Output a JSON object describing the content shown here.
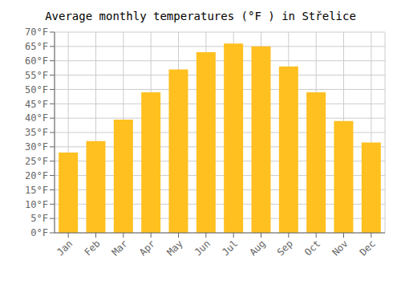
{
  "chart_data": {
    "type": "bar",
    "title": "Average monthly temperatures (°F ) in Střelice",
    "categories": [
      "Jan",
      "Feb",
      "Mar",
      "Apr",
      "May",
      "Jun",
      "Jul",
      "Aug",
      "Sep",
      "Oct",
      "Nov",
      "Dec"
    ],
    "values": [
      28,
      32,
      39.5,
      49,
      57,
      63,
      66,
      65,
      58,
      49,
      39,
      31.5
    ],
    "color": "#FFC020",
    "ylim": [
      0,
      70
    ],
    "yticks": [
      {
        "value": 0,
        "label": "0°F"
      },
      {
        "value": 5,
        "label": "5°F"
      },
      {
        "value": 10,
        "label": "10°F"
      },
      {
        "value": 15,
        "label": "15°F"
      },
      {
        "value": 20,
        "label": "20°F"
      },
      {
        "value": 25,
        "label": "25°F"
      },
      {
        "value": 30,
        "label": "30°F"
      },
      {
        "value": 35,
        "label": "35°F"
      },
      {
        "value": 40,
        "label": "40°F"
      },
      {
        "value": 45,
        "label": "45°F"
      },
      {
        "value": 50,
        "label": "50°F"
      },
      {
        "value": 55,
        "label": "55°F"
      },
      {
        "value": 60,
        "label": "60°F"
      },
      {
        "value": 65,
        "label": "65°F"
      },
      {
        "value": 70,
        "label": "70°F"
      }
    ],
    "grid": true
  }
}
